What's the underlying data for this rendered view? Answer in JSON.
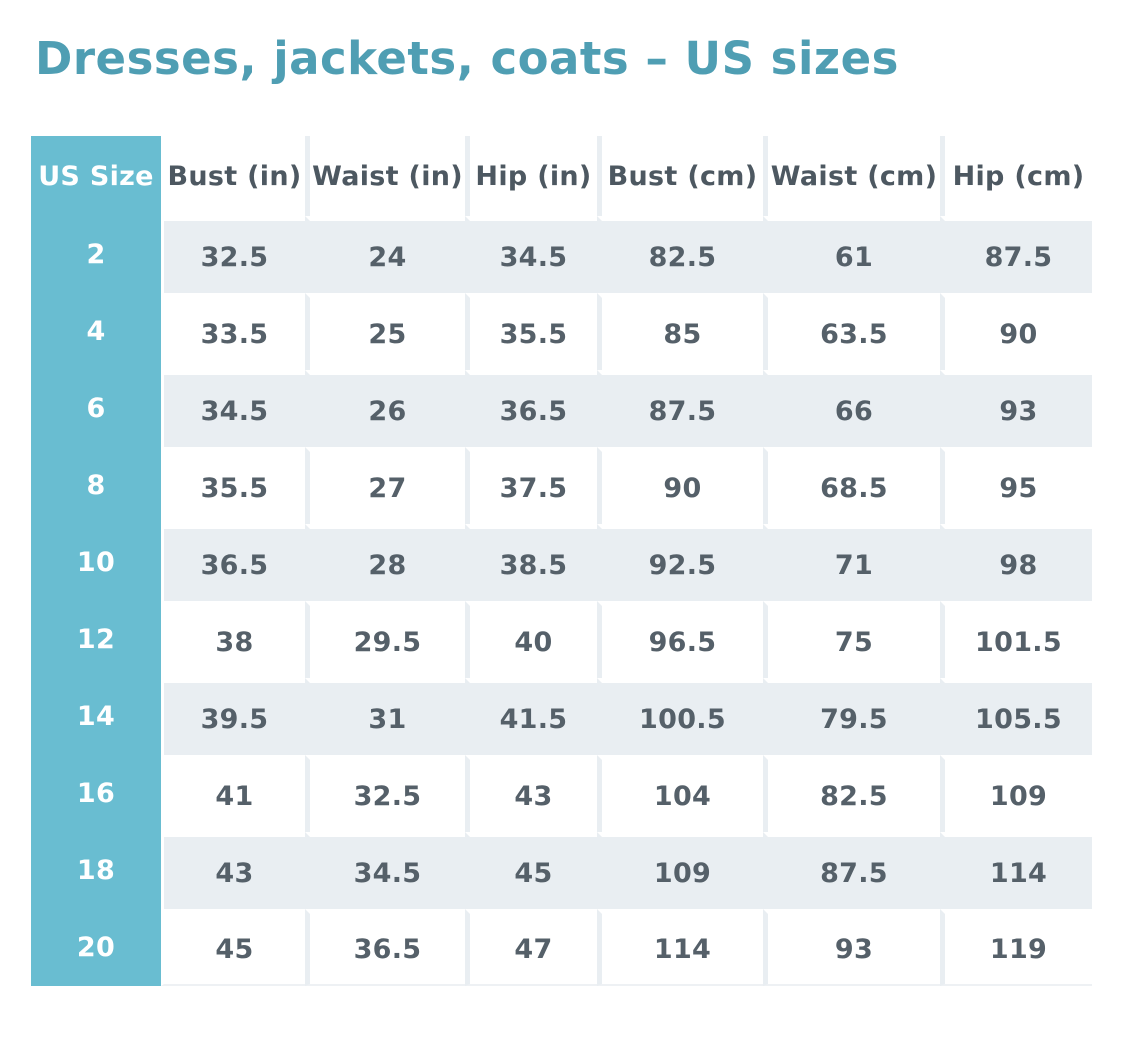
{
  "page": {
    "title": "Dresses, jackets, coats – US sizes"
  },
  "colors": {
    "accent_teal": "#69bdd1",
    "title_teal": "#4f9eb3",
    "row_alt": "#e9eef2",
    "text": "#556069",
    "white": "#ffffff"
  },
  "chart_data": {
    "type": "table",
    "title": "Dresses, jackets, coats – US sizes",
    "columns": [
      "US Size",
      "Bust (in)",
      "Waist (in)",
      "Hip (in)",
      "Bust (cm)",
      "Waist (cm)",
      "Hip (cm)"
    ],
    "rows": [
      [
        "2",
        "32.5",
        "24",
        "34.5",
        "82.5",
        "61",
        "87.5"
      ],
      [
        "4",
        "33.5",
        "25",
        "35.5",
        "85",
        "63.5",
        "90"
      ],
      [
        "6",
        "34.5",
        "26",
        "36.5",
        "87.5",
        "66",
        "93"
      ],
      [
        "8",
        "35.5",
        "27",
        "37.5",
        "90",
        "68.5",
        "95"
      ],
      [
        "10",
        "36.5",
        "28",
        "38.5",
        "92.5",
        "71",
        "98"
      ],
      [
        "12",
        "38",
        "29.5",
        "40",
        "96.5",
        "75",
        "101.5"
      ],
      [
        "14",
        "39.5",
        "31",
        "41.5",
        "100.5",
        "79.5",
        "105.5"
      ],
      [
        "16",
        "41",
        "32.5",
        "43",
        "104",
        "82.5",
        "109"
      ],
      [
        "18",
        "43",
        "34.5",
        "45",
        "109",
        "87.5",
        "114"
      ],
      [
        "20",
        "45",
        "36.5",
        "47",
        "114",
        "93",
        "119"
      ]
    ]
  }
}
